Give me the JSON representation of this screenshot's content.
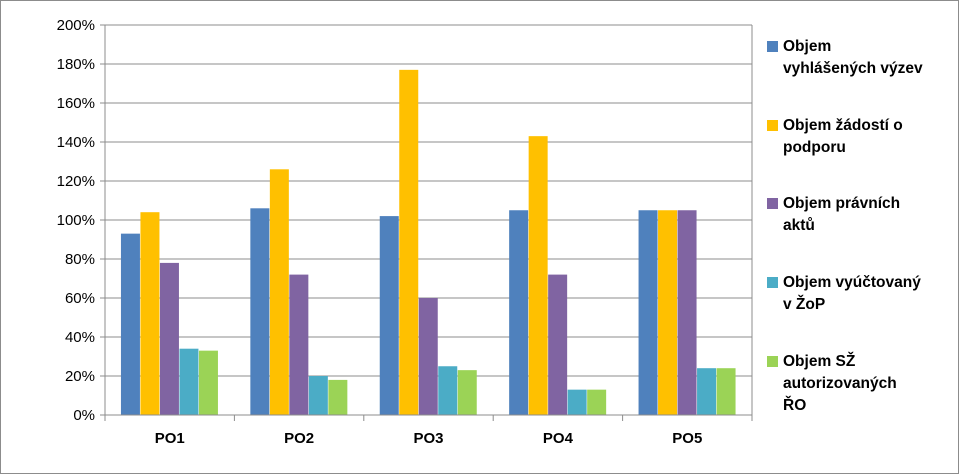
{
  "chart_data": {
    "type": "bar",
    "categories": [
      "PO1",
      "PO2",
      "PO3",
      "PO4",
      "PO5"
    ],
    "series": [
      {
        "name": "Objem vyhlášených výzev",
        "color": "#4F81BD",
        "values": [
          93,
          106,
          102,
          105,
          105
        ]
      },
      {
        "name": "Objem žádostí o podporu",
        "color": "#FFC000",
        "values": [
          104,
          126,
          177,
          143,
          105
        ]
      },
      {
        "name": "Objem právních aktů",
        "color": "#8064A2",
        "values": [
          78,
          72,
          60,
          72,
          105
        ]
      },
      {
        "name": "Objem vyúčtovaný v ŽoP",
        "color": "#4BACC6",
        "values": [
          34,
          20,
          25,
          13,
          24
        ]
      },
      {
        "name": "Objem SŽ autorizovaných ŘO",
        "color": "#9BD356",
        "values": [
          33,
          18,
          23,
          13,
          24
        ]
      }
    ],
    "legend_lines": [
      [
        "Objem",
        "vyhlášených výzev"
      ],
      [
        "Objem žádostí o",
        "podporu"
      ],
      [
        "Objem právních",
        "aktů"
      ],
      [
        "Objem vyúčtovaný",
        "v ŽoP"
      ],
      [
        "Objem SŽ",
        "autorizovaných",
        "ŘO"
      ]
    ],
    "yticks": [
      "0%",
      "20%",
      "40%",
      "60%",
      "80%",
      "100%",
      "120%",
      "140%",
      "160%",
      "180%",
      "200%"
    ],
    "ylim": [
      0,
      200
    ],
    "grid": true,
    "legend_position": "right"
  }
}
